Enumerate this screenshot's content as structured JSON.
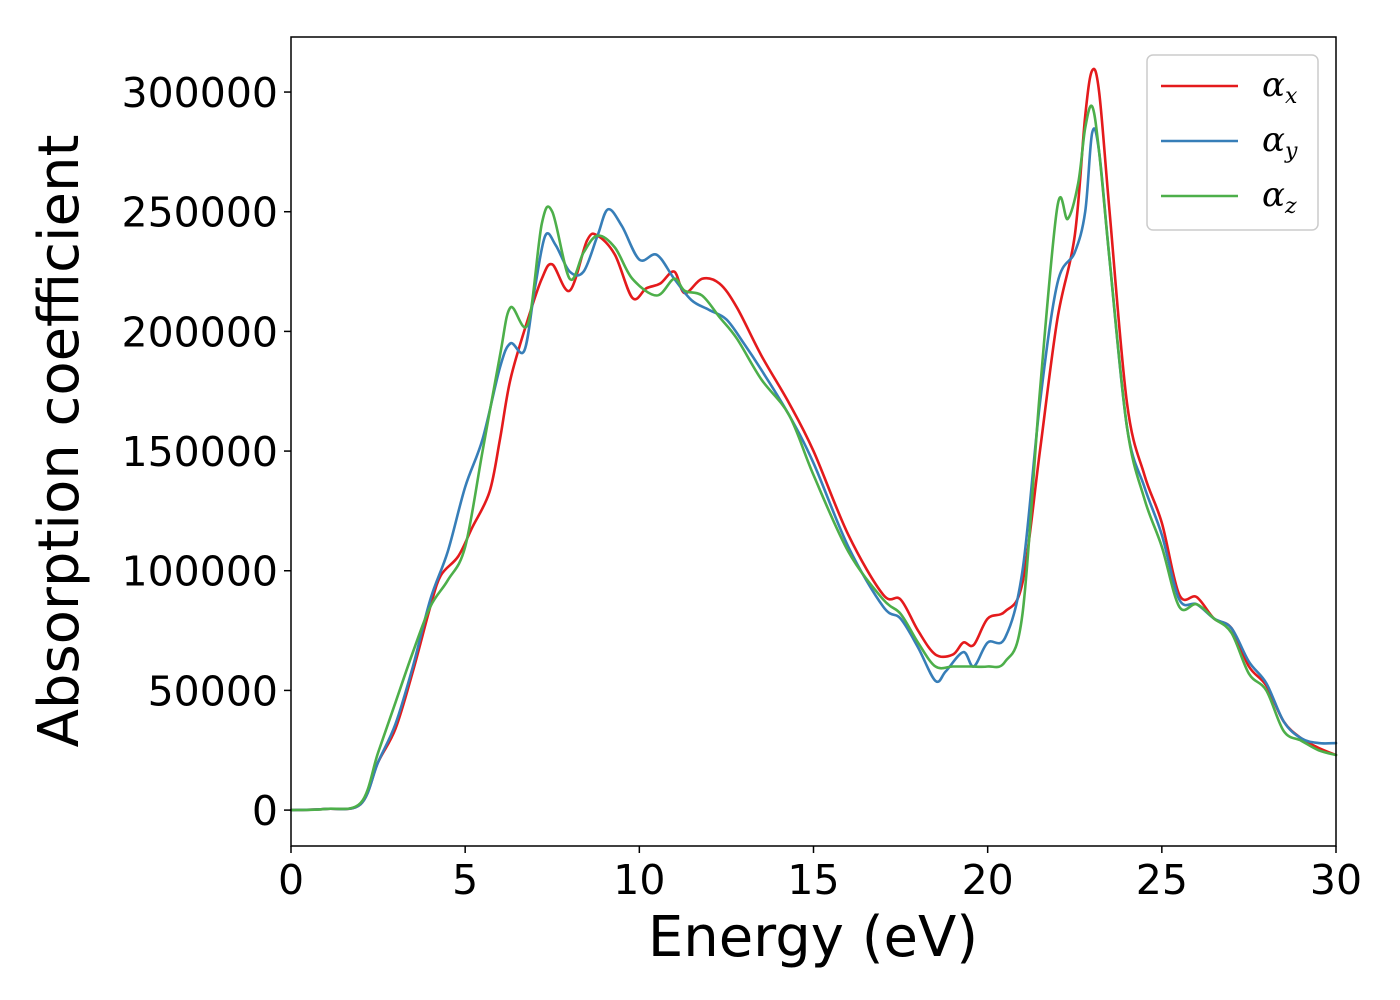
{
  "chart_data": {
    "type": "line",
    "xlabel": "Energy (eV)",
    "ylabel": "Absorption coefficient",
    "xlim": [
      0,
      30
    ],
    "ylim": [
      -15000,
      323000
    ],
    "xticks": [
      0,
      5,
      10,
      15,
      20,
      25,
      30
    ],
    "yticks": [
      0,
      50000,
      100000,
      150000,
      200000,
      250000,
      300000
    ],
    "grid": false,
    "legend_position": "top-right",
    "series": [
      {
        "name": "α_x",
        "symbol": "α",
        "subscript": "x",
        "color": "#e41a1c",
        "x": [
          0,
          1,
          2,
          2.5,
          3,
          3.5,
          4,
          4.3,
          4.8,
          5.2,
          5.7,
          6,
          6.3,
          6.8,
          7.2,
          7.5,
          8,
          8.5,
          8.8,
          9.3,
          9.8,
          10.2,
          10.6,
          11,
          11.3,
          11.8,
          12.3,
          12.8,
          13.5,
          14.3,
          15,
          16,
          17,
          17.5,
          18,
          18.5,
          19,
          19.3,
          19.6,
          20,
          20.5,
          21,
          21.5,
          22,
          22.5,
          22.8,
          23,
          23.2,
          23.5,
          24,
          24.5,
          25,
          25.5,
          26,
          26.5,
          27,
          27.5,
          28,
          28.5,
          29,
          29.5,
          30
        ],
        "y": [
          0,
          500,
          2500,
          20000,
          34000,
          58000,
          85000,
          98000,
          106000,
          118000,
          133000,
          155000,
          180000,
          205000,
          222000,
          228000,
          217000,
          238000,
          240000,
          232000,
          214000,
          218000,
          220000,
          225000,
          216000,
          222000,
          220000,
          210000,
          190000,
          170000,
          150000,
          115000,
          90000,
          88000,
          75000,
          65000,
          65000,
          70000,
          69000,
          80000,
          83000,
          95000,
          150000,
          205000,
          240000,
          290000,
          309000,
          300000,
          250000,
          170000,
          140000,
          120000,
          90000,
          89000,
          80000,
          76000,
          60000,
          52000,
          37000,
          30000,
          26000,
          23000
        ]
      },
      {
        "name": "α_y",
        "symbol": "α",
        "subscript": "y",
        "color": "#377eb8",
        "x": [
          0,
          1,
          2,
          2.5,
          3,
          3.5,
          4,
          4.5,
          5,
          5.5,
          6,
          6.3,
          6.7,
          7,
          7.3,
          7.6,
          8,
          8.4,
          8.8,
          9.1,
          9.5,
          10,
          10.5,
          11,
          11.5,
          12,
          12.5,
          13,
          13.5,
          14.3,
          15,
          16,
          17,
          17.5,
          18,
          18.5,
          18.8,
          19.3,
          19.6,
          20,
          20.5,
          21,
          21.5,
          22,
          22.5,
          22.8,
          23,
          23.2,
          23.5,
          24,
          24.5,
          25,
          25.5,
          26,
          26.5,
          27,
          27.5,
          28,
          28.5,
          29,
          29.5,
          30
        ],
        "y": [
          0,
          500,
          2500,
          20000,
          36000,
          60000,
          88000,
          108000,
          135000,
          155000,
          185000,
          195000,
          192000,
          218000,
          240000,
          236000,
          225000,
          225000,
          240000,
          251000,
          244000,
          230000,
          232000,
          222000,
          213000,
          209000,
          205000,
          195000,
          184000,
          165000,
          145000,
          110000,
          85000,
          80000,
          68000,
          54000,
          58000,
          66000,
          60000,
          70000,
          72000,
          100000,
          170000,
          220000,
          233000,
          250000,
          283000,
          275000,
          230000,
          160000,
          135000,
          115000,
          88000,
          86000,
          80000,
          76000,
          62000,
          53000,
          37000,
          30000,
          28000,
          28000
        ]
      },
      {
        "name": "α_z",
        "symbol": "α",
        "subscript": "z",
        "color": "#4daf4a",
        "x": [
          0,
          1,
          2,
          2.5,
          3,
          3.5,
          4,
          4.5,
          5,
          5.5,
          6,
          6.3,
          6.8,
          7.2,
          7.5,
          8,
          8.4,
          8.8,
          9.3,
          9.8,
          10.5,
          11,
          11.3,
          11.8,
          12.3,
          12.8,
          13.5,
          14.3,
          15,
          16,
          17,
          17.5,
          18,
          18.5,
          19,
          19.5,
          20,
          20.5,
          21,
          21.5,
          22,
          22.3,
          22.6,
          22.8,
          23,
          23.2,
          23.5,
          24,
          24.5,
          25,
          25.5,
          26,
          26.5,
          27,
          27.5,
          28,
          28.5,
          29,
          29.5,
          30
        ],
        "y": [
          0,
          500,
          3000,
          24000,
          45000,
          66000,
          85000,
          96000,
          110000,
          150000,
          190000,
          210000,
          203000,
          245000,
          250000,
          222000,
          233000,
          240000,
          235000,
          222000,
          215000,
          222000,
          217000,
          215000,
          206000,
          197000,
          180000,
          165000,
          140000,
          108000,
          88000,
          82000,
          70000,
          60000,
          60000,
          60000,
          60000,
          62000,
          82000,
          175000,
          252000,
          247000,
          262000,
          285000,
          294000,
          275000,
          230000,
          160000,
          130000,
          110000,
          85000,
          86000,
          80000,
          74000,
          57000,
          50000,
          33000,
          29000,
          25000,
          23000
        ]
      }
    ]
  }
}
